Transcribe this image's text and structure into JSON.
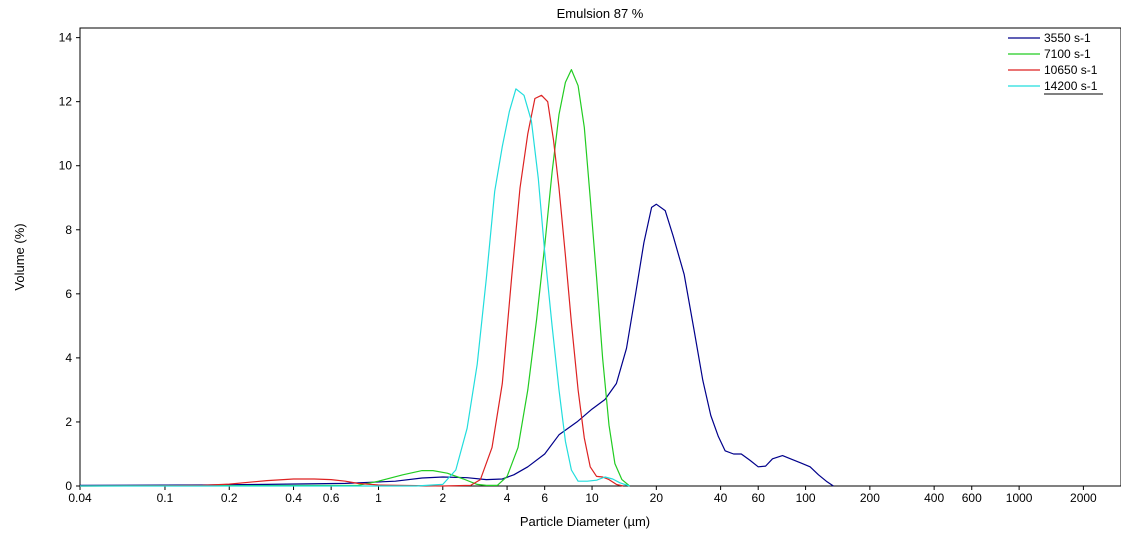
{
  "chart_data": {
    "type": "line",
    "title": "Emulsion 87 %",
    "xlabel": "Particle Diameter (µm)",
    "ylabel": "Volume (%)",
    "x_scale": "log",
    "xlim": [
      0.04,
      3000
    ],
    "ylim": [
      0,
      14.3
    ],
    "x_ticks": [
      0.04,
      0.1,
      0.2,
      0.4,
      0.6,
      1,
      2,
      4,
      6,
      10,
      20,
      40,
      60,
      100,
      200,
      400,
      600,
      1000,
      2000
    ],
    "x_tick_labels": [
      "0.04",
      "0.1",
      "0.2",
      "0.4",
      "0.6",
      "1",
      "2",
      "4",
      "6",
      "10",
      "20",
      "40",
      "60",
      "100",
      "200",
      "400",
      "600",
      "1000",
      "2000"
    ],
    "y_ticks": [
      0,
      2,
      4,
      6,
      8,
      10,
      12,
      14
    ],
    "y_tick_labels": [
      "0",
      "2",
      "4",
      "6",
      "8",
      "10",
      "12",
      "14"
    ],
    "grid": false,
    "legend_position": "top-right",
    "series": [
      {
        "name": "3550 s-1",
        "color": "#00008b",
        "points": [
          [
            0.04,
            0.02
          ],
          [
            0.15,
            0.03
          ],
          [
            0.3,
            0.05
          ],
          [
            0.7,
            0.08
          ],
          [
            1.2,
            0.15
          ],
          [
            1.6,
            0.25
          ],
          [
            2,
            0.28
          ],
          [
            2.6,
            0.26
          ],
          [
            3.2,
            0.2
          ],
          [
            3.8,
            0.22
          ],
          [
            4.3,
            0.35
          ],
          [
            5,
            0.6
          ],
          [
            6,
            1.0
          ],
          [
            7,
            1.6
          ],
          [
            8.5,
            2.0
          ],
          [
            10,
            2.4
          ],
          [
            11.5,
            2.7
          ],
          [
            13,
            3.2
          ],
          [
            14.5,
            4.3
          ],
          [
            16,
            6.0
          ],
          [
            17.5,
            7.6
          ],
          [
            19,
            8.7
          ],
          [
            20,
            8.8
          ],
          [
            22,
            8.6
          ],
          [
            24,
            7.8
          ],
          [
            27,
            6.6
          ],
          [
            30,
            4.9
          ],
          [
            33,
            3.3
          ],
          [
            36,
            2.2
          ],
          [
            39,
            1.55
          ],
          [
            42,
            1.1
          ],
          [
            46,
            1.0
          ],
          [
            50,
            1.0
          ],
          [
            55,
            0.8
          ],
          [
            60,
            0.6
          ],
          [
            65,
            0.62
          ],
          [
            70,
            0.85
          ],
          [
            78,
            0.95
          ],
          [
            85,
            0.85
          ],
          [
            95,
            0.72
          ],
          [
            105,
            0.6
          ],
          [
            115,
            0.35
          ],
          [
            125,
            0.15
          ],
          [
            135,
            0.0
          ]
        ]
      },
      {
        "name": "7100 s-1",
        "color": "#22cc22",
        "points": [
          [
            0.04,
            0.0
          ],
          [
            0.8,
            0.02
          ],
          [
            1.0,
            0.15
          ],
          [
            1.3,
            0.35
          ],
          [
            1.6,
            0.48
          ],
          [
            1.8,
            0.48
          ],
          [
            2.1,
            0.4
          ],
          [
            2.5,
            0.22
          ],
          [
            2.9,
            0.05
          ],
          [
            3.2,
            0.02
          ],
          [
            3.6,
            0.02
          ],
          [
            4.0,
            0.3
          ],
          [
            4.5,
            1.2
          ],
          [
            5.0,
            3.0
          ],
          [
            5.5,
            5.2
          ],
          [
            6.0,
            7.5
          ],
          [
            6.5,
            9.8
          ],
          [
            7.0,
            11.6
          ],
          [
            7.5,
            12.6
          ],
          [
            8.0,
            13.0
          ],
          [
            8.6,
            12.5
          ],
          [
            9.2,
            11.2
          ],
          [
            9.8,
            9.0
          ],
          [
            10.5,
            6.5
          ],
          [
            11.2,
            4.0
          ],
          [
            12.0,
            1.9
          ],
          [
            12.8,
            0.7
          ],
          [
            13.8,
            0.2
          ],
          [
            15,
            0.0
          ]
        ]
      },
      {
        "name": "10650 s-1",
        "color": "#dd2222",
        "points": [
          [
            0.04,
            0.0
          ],
          [
            0.1,
            0.01
          ],
          [
            0.15,
            0.02
          ],
          [
            0.2,
            0.06
          ],
          [
            0.3,
            0.17
          ],
          [
            0.4,
            0.22
          ],
          [
            0.5,
            0.22
          ],
          [
            0.6,
            0.2
          ],
          [
            0.7,
            0.15
          ],
          [
            0.8,
            0.08
          ],
          [
            1.0,
            0.03
          ],
          [
            2.0,
            0.0
          ],
          [
            2.7,
            0.02
          ],
          [
            3.0,
            0.2
          ],
          [
            3.4,
            1.2
          ],
          [
            3.8,
            3.2
          ],
          [
            4.2,
            6.5
          ],
          [
            4.6,
            9.3
          ],
          [
            5.0,
            11.0
          ],
          [
            5.4,
            12.1
          ],
          [
            5.8,
            12.2
          ],
          [
            6.2,
            12.0
          ],
          [
            6.6,
            10.8
          ],
          [
            7.0,
            9.3
          ],
          [
            7.5,
            7.2
          ],
          [
            8.0,
            5.1
          ],
          [
            8.6,
            3.0
          ],
          [
            9.2,
            1.5
          ],
          [
            9.8,
            0.6
          ],
          [
            10.5,
            0.3
          ],
          [
            11.2,
            0.28
          ],
          [
            12.0,
            0.2
          ],
          [
            13.0,
            0.05
          ],
          [
            14.0,
            0.0
          ]
        ]
      },
      {
        "name": "14200 s-1",
        "color": "#22dddd",
        "points": [
          [
            0.04,
            0.0
          ],
          [
            1.5,
            0.0
          ],
          [
            2.0,
            0.05
          ],
          [
            2.3,
            0.5
          ],
          [
            2.6,
            1.8
          ],
          [
            2.9,
            3.8
          ],
          [
            3.2,
            6.5
          ],
          [
            3.5,
            9.2
          ],
          [
            3.8,
            10.6
          ],
          [
            4.1,
            11.7
          ],
          [
            4.4,
            12.4
          ],
          [
            4.8,
            12.2
          ],
          [
            5.2,
            11.4
          ],
          [
            5.6,
            9.6
          ],
          [
            6.0,
            7.3
          ],
          [
            6.5,
            5.0
          ],
          [
            7.0,
            3.0
          ],
          [
            7.5,
            1.4
          ],
          [
            8.0,
            0.5
          ],
          [
            8.6,
            0.15
          ],
          [
            9.5,
            0.15
          ],
          [
            10.5,
            0.18
          ],
          [
            11.5,
            0.28
          ],
          [
            12.5,
            0.22
          ],
          [
            13.5,
            0.1
          ],
          [
            15,
            0.0
          ]
        ]
      }
    ]
  }
}
